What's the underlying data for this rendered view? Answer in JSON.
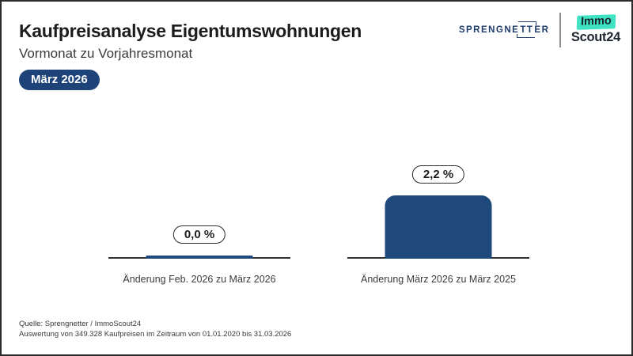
{
  "header": {
    "title": "Kaufpreisanalyse Eigentumswohnungen",
    "subtitle": "Vormonat zu Vorjahresmonat",
    "badge": "März 2026",
    "logos": {
      "sprengnetter": {
        "pre": "SPRENGNE",
        "tt": "TT",
        "post": "ER"
      },
      "immoscout": {
        "line1": "Immo",
        "line2": "Scout24"
      }
    }
  },
  "chart_data": {
    "type": "bar",
    "title": "Kaufpreisanalyse Eigentumswohnungen",
    "subtitle": "Vormonat zu Vorjahresmonat",
    "categories": [
      "Änderung Feb. 2026 zu März 2026",
      "Änderung März 2026 zu März 2025"
    ],
    "values": [
      0.0,
      2.2
    ],
    "value_labels": [
      "0,0 %",
      "2,2 %"
    ],
    "unit": "%",
    "ylim": [
      0,
      2.5
    ],
    "grid": false,
    "legend": false,
    "bar_color": "#20497B",
    "axis_color": "#303030"
  },
  "footer": {
    "source": "Quelle: Sprengnetter / ImmoScout24",
    "note": "Auswertung von 349.328 Kaufpreisen im Zeitraum von 01.01.2020 bis 31.03.2026"
  },
  "colors": {
    "accent_navy": "#1E4379",
    "bar_navy": "#20497B",
    "immoscout_teal": "#3FE3C3",
    "sprengnetter_navy": "#1D3C6E"
  }
}
